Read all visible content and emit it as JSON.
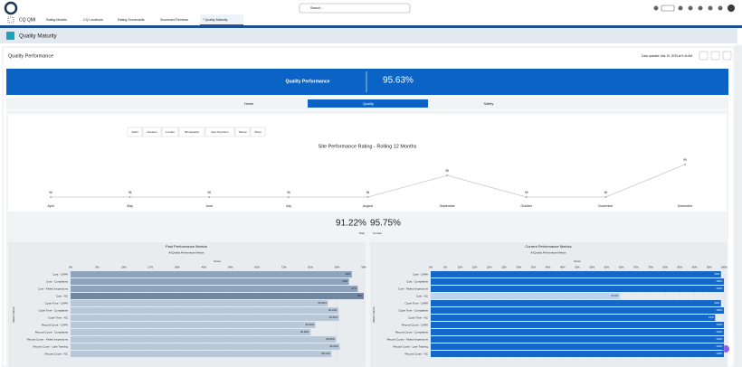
{
  "app": {
    "name": "CQ QMI",
    "search": "Search...",
    "tabs": [
      "Rating Models",
      "CQ Locations",
      "Rating Scorecards",
      "Scorecard Reviews",
      "* Quality Maturity"
    ],
    "active_tab": 4
  },
  "page": {
    "title": "Quality Maturity"
  },
  "card": {
    "title": "Quality Performance",
    "updated": "Data updated: Mar 19, 2025 at 9:44 AM"
  },
  "banner": {
    "label": "Quality Performance",
    "value": "95.63%"
  },
  "nav": {
    "tabs": [
      "Home",
      "Quality",
      "Safety"
    ],
    "active": 1
  },
  "filters": [
    "Delhi",
    "Houston",
    "London",
    "Minneapolis",
    "San Francisco",
    "Tampa",
    "Tokyo"
  ],
  "line_chart": {
    "type": "line",
    "title": "Site Performance Rating - Rolling 12 Months",
    "categories": [
      "April",
      "May",
      "June",
      "July",
      "August",
      "September",
      "October",
      "November",
      "December"
    ],
    "values": [
      96,
      96,
      96,
      96,
      96,
      98,
      96,
      96,
      99
    ],
    "color": "#c3c9d1"
  },
  "summary": {
    "past": {
      "value": "91.22%",
      "label": "Past"
    },
    "current": {
      "value": "95.75%",
      "label": "Current"
    }
  },
  "past_chart": {
    "type": "hbar",
    "title": "Past Performance Metrics",
    "subtitle": "All Quality Performance Metrics",
    "x_label": "Score",
    "y_label": "Metric Name",
    "categories": [
      "Cost - CAPA",
      "Cost - Complaints",
      "Cost - Failed Inspections",
      "Cost - NC",
      "Cycle Time - CAPA",
      "Cycle Time - Complaints",
      "Cycle Time - NC",
      "Record Count - CAPA",
      "Record Count - Complaints",
      "Record Count - Failed Inspections",
      "Record Count - Late Training",
      "Record Count - NC"
    ],
    "values": [
      95,
      94,
      97,
      99,
      86.92,
      90.43,
      90.66,
      82.69,
      80.99,
      89.63,
      90.9,
      88.12
    ],
    "value_labels": [
      "95%",
      "94%",
      "97%",
      "99%",
      "86.92%",
      "90.43%",
      "90.66%",
      "82.69%",
      "80.99%",
      "89.63%",
      "90.90%",
      "88.12%"
    ],
    "colors": [
      "#8fa3bc",
      "#8fa3bc",
      "#8fa3bc",
      "#71879f",
      "#bac7d6",
      "#bac7d6",
      "#bac7d6",
      "#bac7d6",
      "#bac7d6",
      "#bac7d6",
      "#bac7d6",
      "#bac7d6"
    ],
    "xlim": [
      0,
      99
    ],
    "xticks": [
      {
        "value": 0,
        "label": "0%"
      },
      {
        "value": 9,
        "label": "9%"
      },
      {
        "value": 18,
        "label": "18%"
      },
      {
        "value": 27,
        "label": "27%"
      },
      {
        "value": 36,
        "label": "36%"
      },
      {
        "value": 45,
        "label": "45%"
      },
      {
        "value": 54,
        "label": "54%"
      },
      {
        "value": 63,
        "label": "63%"
      },
      {
        "value": 72,
        "label": "72%"
      },
      {
        "value": 81,
        "label": "81%"
      },
      {
        "value": 90,
        "label": "90%"
      },
      {
        "value": 99,
        "label": "99%"
      }
    ]
  },
  "current_chart": {
    "type": "hbar",
    "title": "Current Performance Metrics",
    "subtitle": "All Quality Performance Metrics",
    "x_label": "Score",
    "y_label": "Metric Name",
    "categories": [
      "Cost - CAPA",
      "Cost - Complaints",
      "Cost - Failed Inspections",
      "Cost - NC",
      "Cycle Time - CAPA",
      "Cycle Time - Complaints",
      "Cycle Time - NC",
      "Record Count - CAPA",
      "Record Count - Complaints",
      "Record Count - Failed Inspections",
      "Record Count - Late Training",
      "Record Count - NC"
    ],
    "values": [
      99,
      100,
      100,
      64.5,
      99,
      100,
      97,
      100,
      100,
      100,
      100,
      100
    ],
    "value_labels": [
      "99%",
      "100%",
      "100%",
      "64.5%",
      "99%",
      "100%",
      "97%",
      "100%",
      "100%",
      "100%",
      "100%",
      "100%"
    ],
    "colors": [
      "#1467c8",
      "#1467c8",
      "#1467c8",
      "#bcd4f0",
      "#1467c8",
      "#1467c8",
      "#1467c8",
      "#1467c8",
      "#1467c8",
      "#1467c8",
      "#1467c8",
      "#1467c8"
    ],
    "xlim": [
      0,
      100
    ],
    "xticks": [
      {
        "value": 0,
        "label": "0%"
      },
      {
        "value": 5,
        "label": "5%"
      },
      {
        "value": 10,
        "label": "10%"
      },
      {
        "value": 15,
        "label": "15%"
      },
      {
        "value": 20,
        "label": "20%"
      },
      {
        "value": 25,
        "label": "25%"
      },
      {
        "value": 30,
        "label": "30%"
      },
      {
        "value": 35,
        "label": "35%"
      },
      {
        "value": 40,
        "label": "40%"
      },
      {
        "value": 45,
        "label": "45%"
      },
      {
        "value": 50,
        "label": "50%"
      },
      {
        "value": 55,
        "label": "55%"
      },
      {
        "value": 60,
        "label": "60%"
      },
      {
        "value": 65,
        "label": "65%"
      },
      {
        "value": 70,
        "label": "70%"
      },
      {
        "value": 75,
        "label": "75%"
      },
      {
        "value": 80,
        "label": "80%"
      },
      {
        "value": 85,
        "label": "85%"
      },
      {
        "value": 90,
        "label": "90%"
      },
      {
        "value": 95,
        "label": "95%"
      },
      {
        "value": 100,
        "label": "100%"
      }
    ]
  }
}
